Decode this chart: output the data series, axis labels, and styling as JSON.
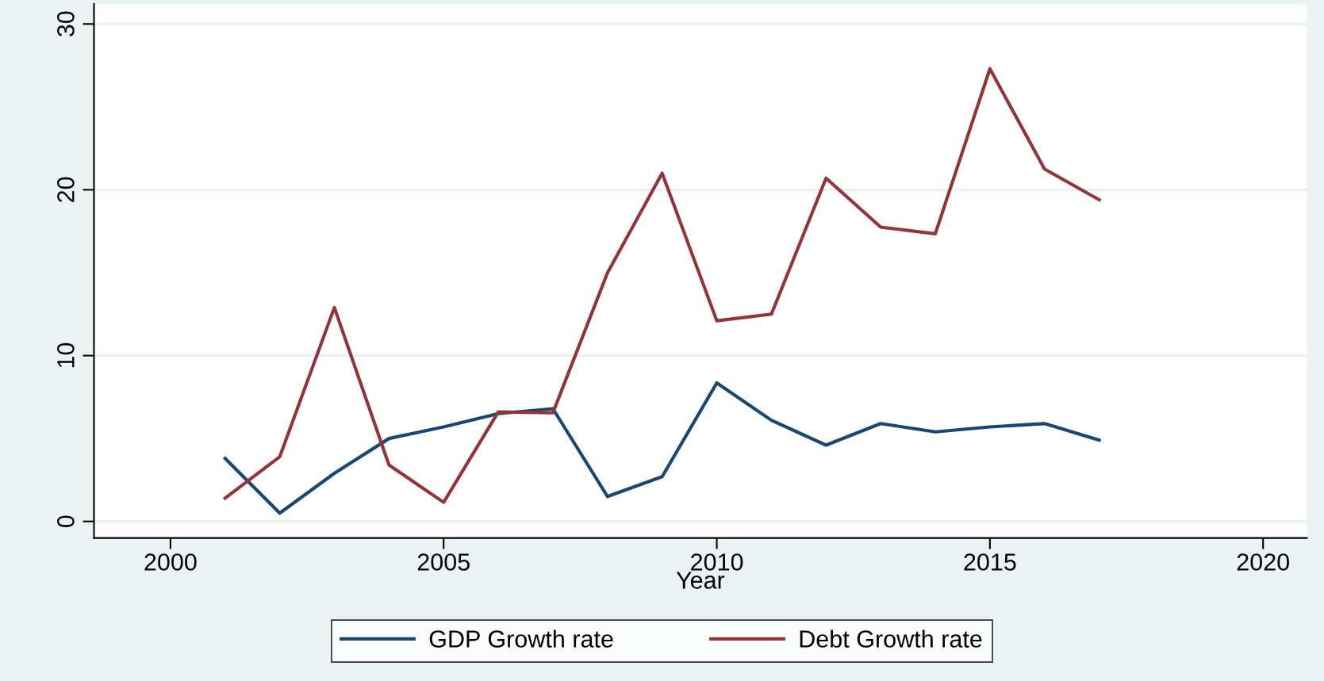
{
  "chart_data": {
    "type": "line",
    "xlabel": "Year",
    "x": [
      2001,
      2002,
      2003,
      2004,
      2005,
      2006,
      2007,
      2008,
      2009,
      2010,
      2011,
      2012,
      2013,
      2014,
      2015,
      2016,
      2017
    ],
    "series": [
      {
        "name": "GDP Growth rate",
        "color": "#1a476f",
        "values": [
          3.8,
          0.5,
          2.9,
          5.0,
          5.7,
          6.5,
          6.8,
          1.5,
          2.7,
          8.35,
          6.1,
          4.6,
          5.9,
          5.4,
          5.7,
          5.9,
          4.9
        ]
      },
      {
        "name": "Debt Growth rate",
        "color": "#90353b",
        "values": [
          1.4,
          3.9,
          12.9,
          3.4,
          1.15,
          6.6,
          6.55,
          15.0,
          21.0,
          12.1,
          12.5,
          20.7,
          17.75,
          17.35,
          27.3,
          21.25,
          19.4
        ]
      }
    ],
    "xlim": [
      1998.6,
      2020.8
    ],
    "xticks": [
      2000,
      2005,
      2010,
      2015,
      2020
    ],
    "ylim": [
      -1,
      31.2
    ],
    "yticks": [
      0,
      10,
      20,
      30
    ],
    "grid": "y",
    "legend": "bottom",
    "marker": "none",
    "line_style": "solid"
  }
}
